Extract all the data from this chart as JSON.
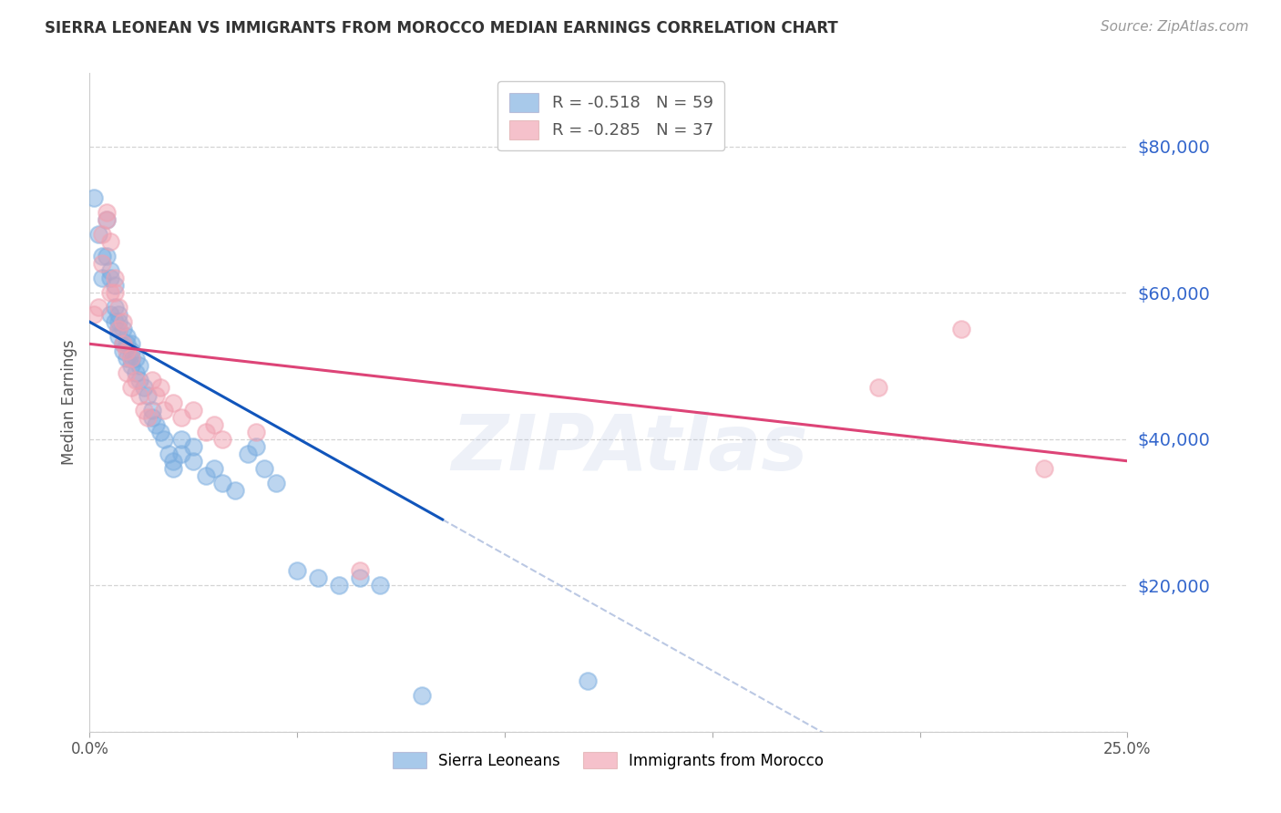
{
  "title": "SIERRA LEONEAN VS IMMIGRANTS FROM MOROCCO MEDIAN EARNINGS CORRELATION CHART",
  "source": "Source: ZipAtlas.com",
  "ylabel": "Median Earnings",
  "xlim": [
    0.0,
    0.25
  ],
  "ylim": [
    0,
    90000
  ],
  "yticks": [
    0,
    20000,
    40000,
    60000,
    80000
  ],
  "xticks": [
    0.0,
    0.05,
    0.1,
    0.15,
    0.2,
    0.25
  ],
  "background_color": "#ffffff",
  "grid_color": "#d0d0d0",
  "watermark": "ZIPAtlas",
  "sierra_color": "#7aade0",
  "morocco_color": "#f0a0b0",
  "sierra_line_color": "#1155bb",
  "morocco_line_color": "#dd4477",
  "dashed_line_color": "#aabbdd",
  "sierra_R": -0.518,
  "sierra_N": 59,
  "morocco_R": -0.285,
  "morocco_N": 37,
  "sierra_x": [
    0.001,
    0.002,
    0.003,
    0.003,
    0.004,
    0.004,
    0.005,
    0.005,
    0.005,
    0.006,
    0.006,
    0.006,
    0.007,
    0.007,
    0.007,
    0.007,
    0.008,
    0.008,
    0.008,
    0.009,
    0.009,
    0.009,
    0.01,
    0.01,
    0.01,
    0.01,
    0.011,
    0.011,
    0.012,
    0.012,
    0.013,
    0.014,
    0.015,
    0.015,
    0.016,
    0.017,
    0.018,
    0.019,
    0.02,
    0.02,
    0.022,
    0.022,
    0.025,
    0.025,
    0.028,
    0.03,
    0.032,
    0.035,
    0.038,
    0.04,
    0.042,
    0.045,
    0.05,
    0.055,
    0.06,
    0.065,
    0.07,
    0.08,
    0.12
  ],
  "sierra_y": [
    73000,
    68000,
    62000,
    65000,
    70000,
    65000,
    63000,
    62000,
    57000,
    56000,
    58000,
    61000,
    55000,
    57000,
    56000,
    54000,
    52000,
    55000,
    53000,
    51000,
    54000,
    53000,
    50000,
    52000,
    51000,
    53000,
    49000,
    51000,
    48000,
    50000,
    47000,
    46000,
    44000,
    43000,
    42000,
    41000,
    40000,
    38000,
    37000,
    36000,
    40000,
    38000,
    39000,
    37000,
    35000,
    36000,
    34000,
    33000,
    38000,
    39000,
    36000,
    34000,
    22000,
    21000,
    20000,
    21000,
    20000,
    5000,
    7000
  ],
  "morocco_x": [
    0.001,
    0.002,
    0.003,
    0.003,
    0.004,
    0.004,
    0.005,
    0.005,
    0.006,
    0.006,
    0.007,
    0.007,
    0.008,
    0.008,
    0.009,
    0.009,
    0.01,
    0.01,
    0.011,
    0.012,
    0.013,
    0.014,
    0.015,
    0.016,
    0.017,
    0.018,
    0.02,
    0.022,
    0.025,
    0.028,
    0.03,
    0.032,
    0.04,
    0.065,
    0.19,
    0.21,
    0.23
  ],
  "morocco_y": [
    57000,
    58000,
    64000,
    68000,
    70000,
    71000,
    67000,
    60000,
    62000,
    60000,
    58000,
    55000,
    56000,
    53000,
    52000,
    49000,
    51000,
    47000,
    48000,
    46000,
    44000,
    43000,
    48000,
    46000,
    47000,
    44000,
    45000,
    43000,
    44000,
    41000,
    42000,
    40000,
    41000,
    22000,
    47000,
    55000,
    36000
  ],
  "sierra_line_xmin": 0.0,
  "sierra_line_xmax": 0.085,
  "sierra_line_ystart": 56000,
  "sierra_line_yend": 29000,
  "morocco_line_xmin": 0.0,
  "morocco_line_xmax": 0.25,
  "morocco_line_ystart": 53000,
  "morocco_line_yend": 37000
}
